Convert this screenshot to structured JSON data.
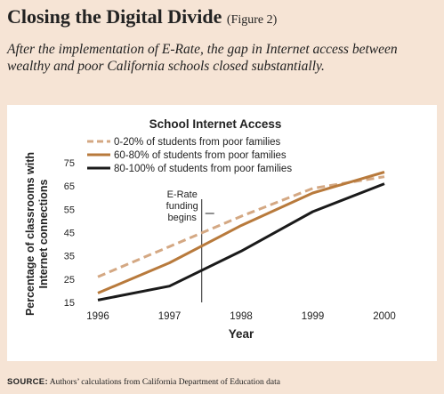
{
  "header": {
    "title": "Closing the Digital Divide",
    "figure_ref": "(Figure 2)",
    "subtitle": "After the implementation of E-Rate, the gap in Internet access between wealthy and poor California schools closed substantially."
  },
  "source": {
    "label": "SOURCE:",
    "text": "Authors’ calculations from California Department of Education data"
  },
  "chart_data": {
    "type": "line",
    "title": "School Internet Access",
    "xlabel": "Year",
    "ylabel": "Percentage of classrooms with Internet connections",
    "x": [
      1996,
      1997,
      1998,
      1999,
      2000
    ],
    "x_ticks": [
      "1996",
      "1997",
      "1998",
      "1999",
      "2000"
    ],
    "y_ticks": [
      15,
      25,
      35,
      45,
      55,
      65,
      75
    ],
    "ylim": [
      15,
      75
    ],
    "series": [
      {
        "name": "0-20% of students from poor families",
        "values": [
          26,
          39,
          52,
          64,
          69
        ],
        "color": "#d4a883",
        "style": "dashed"
      },
      {
        "name": "60-80% of students from poor families",
        "values": [
          19,
          32,
          48,
          62,
          71
        ],
        "color": "#b87a3c",
        "style": "solid"
      },
      {
        "name": "80-100% of students from poor families",
        "values": [
          16,
          22,
          37,
          54,
          66
        ],
        "color": "#1a1a1a",
        "style": "solid"
      }
    ],
    "annotation": {
      "lines": [
        "E-Rate",
        "funding",
        "begins"
      ],
      "x": 1997.45
    },
    "legend_position": "top-left"
  }
}
